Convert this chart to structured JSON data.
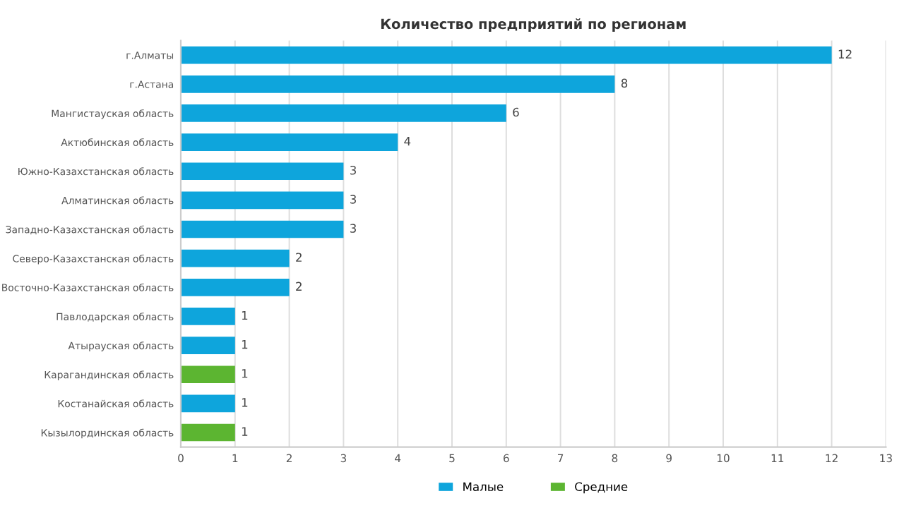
{
  "chart_data": {
    "type": "bar",
    "orientation": "horizontal",
    "title": "Количество предприятий по регионам",
    "categories": [
      "г.Алматы",
      "г.Астана",
      "Мангистауская область",
      "Актюбинская область",
      "Южно-Казахстанская область",
      "Алматинская область",
      "Западно-Казахстанская область",
      "Северо-Казахстанская область",
      "Восточно-Казахстанская область",
      "Павлодарская область",
      "Атырауская область",
      "Карагандинская область",
      "Костанайская область",
      "Кызылординская область"
    ],
    "series": [
      {
        "name": "Малые",
        "color": "#0ea5dc",
        "values": [
          12,
          8,
          6,
          4,
          3,
          3,
          3,
          2,
          2,
          1,
          1,
          null,
          1,
          null
        ]
      },
      {
        "name": "Средние",
        "color": "#5cb531",
        "values": [
          null,
          null,
          null,
          null,
          null,
          null,
          null,
          null,
          null,
          null,
          null,
          1,
          null,
          1
        ]
      }
    ],
    "xlim": [
      0,
      13
    ],
    "xticks": [
      0,
      1,
      2,
      3,
      4,
      5,
      6,
      7,
      8,
      9,
      10,
      11,
      12,
      13
    ],
    "grid": "x",
    "legend": "bottom",
    "data_labels": true
  }
}
